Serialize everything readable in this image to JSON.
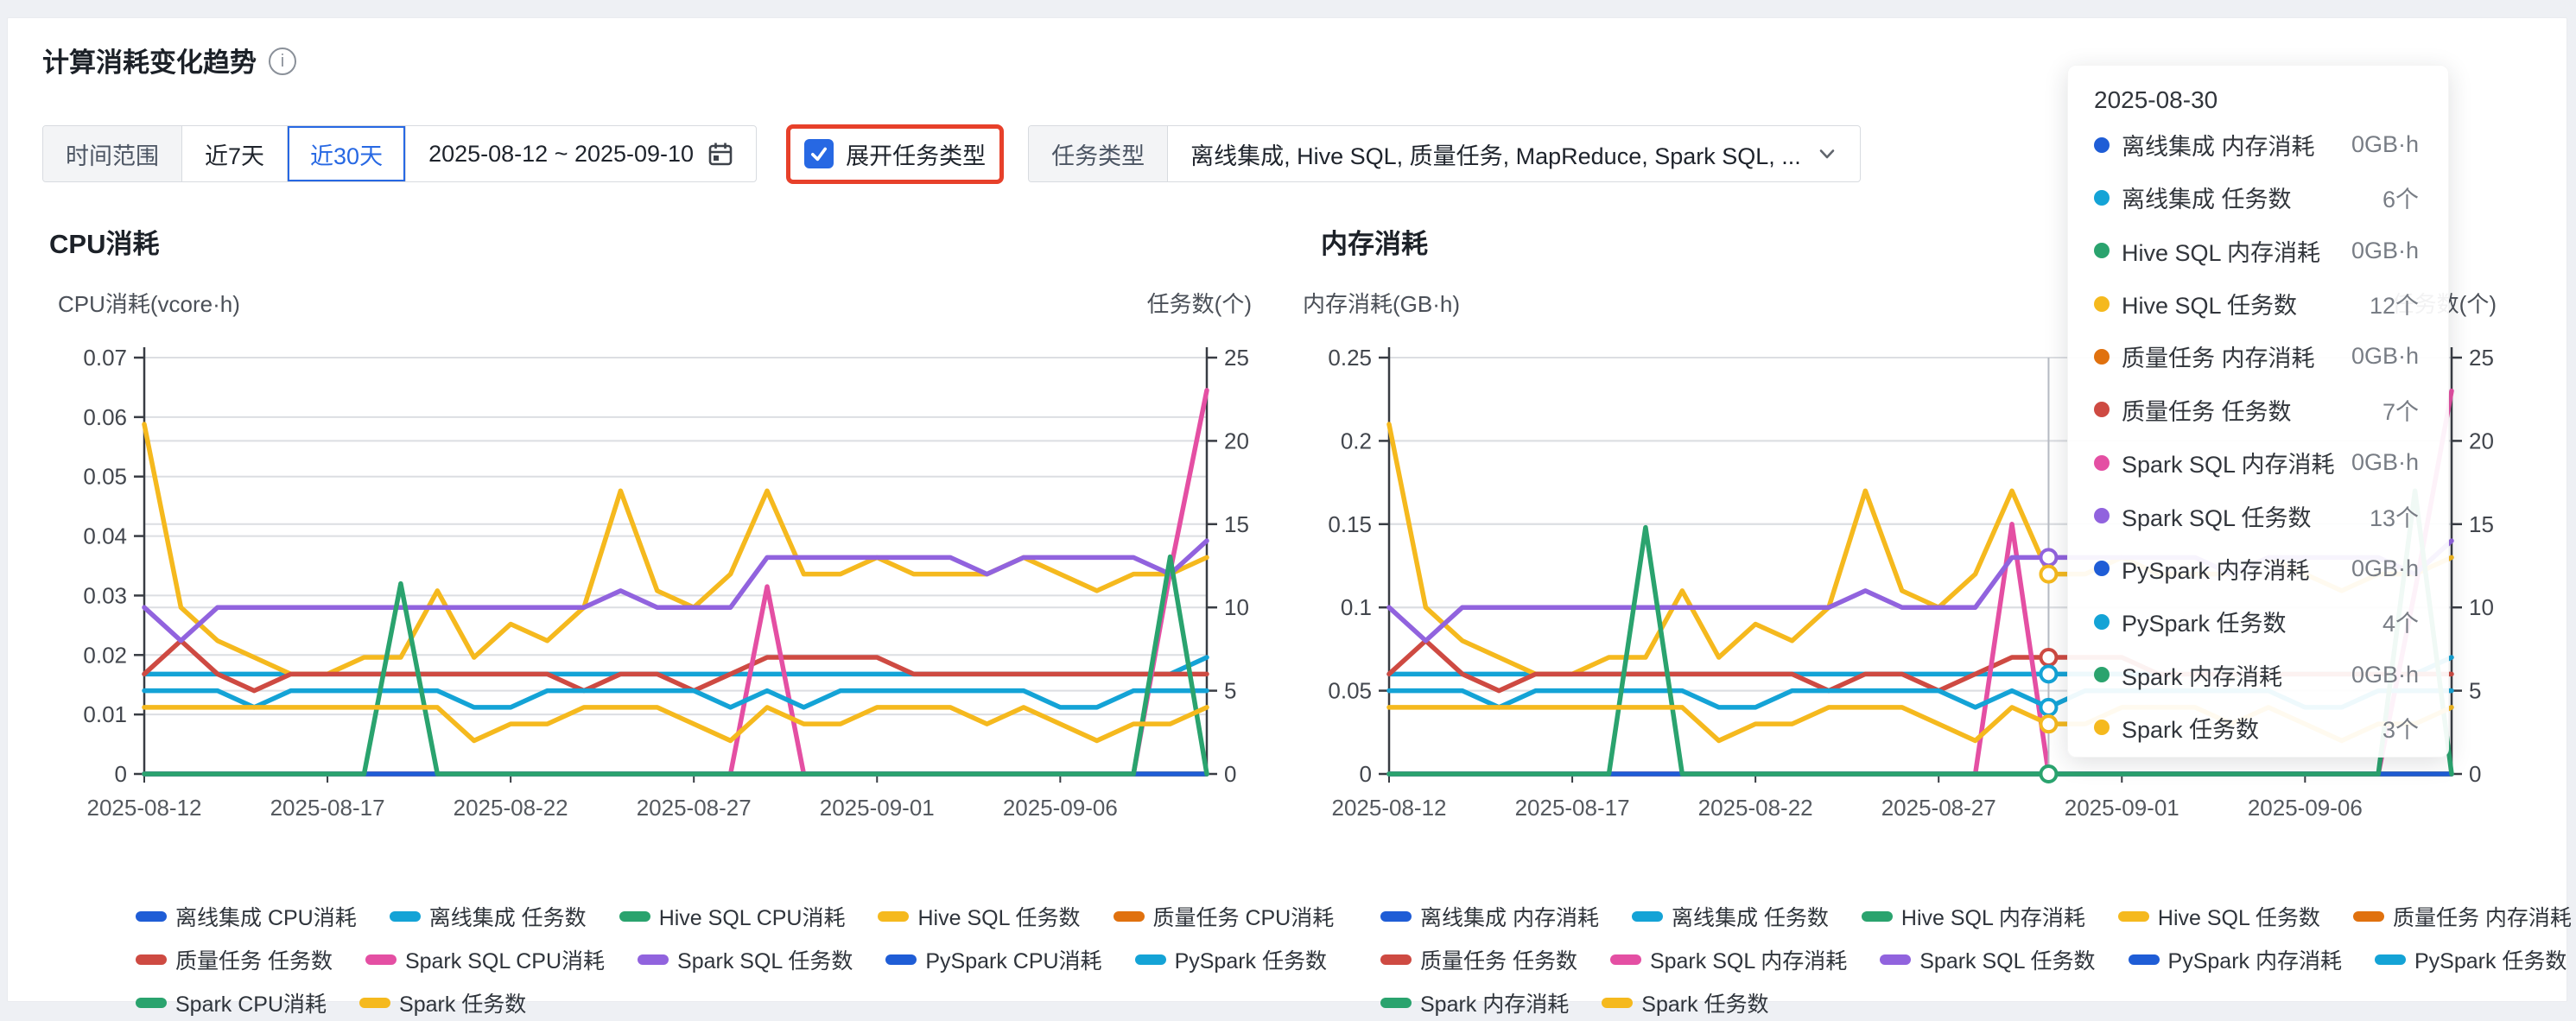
{
  "header": {
    "title": "计算消耗变化趋势"
  },
  "filters": {
    "time_range_label": "时间范围",
    "last_7_days": "近7天",
    "last_30_days": "近30天",
    "date_range": "2025-08-12 ~ 2025-09-10",
    "expand_task_type_label": "展开任务类型",
    "expand_task_type_checked": true,
    "task_type_label": "任务类型",
    "task_type_value": "离线集成, Hive SQL, 质量任务, MapReduce, Spark SQL, ...",
    "accent_blue": "#2768e3",
    "highlight_red": "#e7402a"
  },
  "tooltip": {
    "date": "2025-08-30",
    "rows": [
      {
        "color": "#1f5dd6",
        "name": "离线集成 内存消耗",
        "value": "0GB·h"
      },
      {
        "color": "#14a3d6",
        "name": "离线集成 任务数",
        "value": "6个"
      },
      {
        "color": "#2aa36e",
        "name": "Hive SQL 内存消耗",
        "value": "0GB·h"
      },
      {
        "color": "#f5b91e",
        "name": "Hive SQL 任务数",
        "value": "12个"
      },
      {
        "color": "#e0710e",
        "name": "质量任务 内存消耗",
        "value": "0GB·h"
      },
      {
        "color": "#ce4a42",
        "name": "质量任务 任务数",
        "value": "7个"
      },
      {
        "color": "#e44fa3",
        "name": "Spark SQL 内存消耗",
        "value": "0GB·h"
      },
      {
        "color": "#9163de",
        "name": "Spark SQL 任务数",
        "value": "13个"
      },
      {
        "color": "#1f5dd6",
        "name": "PySpark 内存消耗",
        "value": "0GB·h"
      },
      {
        "color": "#14a3d6",
        "name": "PySpark 任务数",
        "value": "4个"
      },
      {
        "color": "#2aa36e",
        "name": "Spark 内存消耗",
        "value": "0GB·h"
      },
      {
        "color": "#f5b91e",
        "name": "Spark 任务数",
        "value": "3个"
      }
    ]
  },
  "chart_data": [
    {
      "type": "line",
      "id": "cpu",
      "title": "CPU消耗",
      "ylabel": "CPU消耗(vcore·h)",
      "y2label": "任务数(个)",
      "ylim": [
        0,
        0.07
      ],
      "y2lim": [
        0,
        25
      ],
      "y_ticks": [
        "0.07",
        "0.06",
        "0.05",
        "0.04",
        "0.03",
        "0.02",
        "0.01",
        "0"
      ],
      "y2_ticks": [
        "25",
        "20",
        "15",
        "10",
        "5",
        "0"
      ],
      "x": [
        "2025-08-12",
        "2025-08-13",
        "2025-08-14",
        "2025-08-15",
        "2025-08-16",
        "2025-08-17",
        "2025-08-18",
        "2025-08-19",
        "2025-08-20",
        "2025-08-21",
        "2025-08-22",
        "2025-08-23",
        "2025-08-24",
        "2025-08-25",
        "2025-08-26",
        "2025-08-27",
        "2025-08-28",
        "2025-08-29",
        "2025-08-30",
        "2025-08-31",
        "2025-09-01",
        "2025-09-02",
        "2025-09-03",
        "2025-09-04",
        "2025-09-05",
        "2025-09-06",
        "2025-09-07",
        "2025-09-08",
        "2025-09-09",
        "2025-09-10"
      ],
      "x_label_indices": [
        0,
        5,
        10,
        15,
        20,
        25
      ],
      "legend_rows": [
        [
          0,
          1,
          2,
          3,
          4
        ],
        [
          5,
          6,
          7,
          8,
          9
        ],
        [
          10,
          11
        ]
      ],
      "series": [
        {
          "name": "离线集成 CPU消耗",
          "color": "#1f5dd6",
          "axis": "y",
          "values": [
            0,
            0,
            0,
            0,
            0,
            0,
            0,
            0,
            0,
            0,
            0,
            0,
            0,
            0,
            0,
            0,
            0,
            0,
            0,
            0,
            0,
            0,
            0,
            0,
            0,
            0,
            0,
            0,
            0,
            0
          ]
        },
        {
          "name": "离线集成 任务数",
          "color": "#14a3d6",
          "axis": "y2",
          "values": [
            6,
            6,
            6,
            6,
            6,
            6,
            6,
            6,
            6,
            6,
            6,
            6,
            6,
            6,
            6,
            6,
            6,
            6,
            6,
            6,
            6,
            6,
            6,
            6,
            6,
            6,
            6,
            6,
            6,
            7
          ]
        },
        {
          "name": "Hive SQL CPU消耗",
          "color": "#2aa36e",
          "axis": "y",
          "values": [
            0,
            0,
            0,
            0,
            0,
            0,
            0,
            0,
            0,
            0,
            0,
            0,
            0,
            0,
            0,
            0,
            0,
            0,
            0,
            0,
            0,
            0,
            0,
            0,
            0,
            0,
            0,
            0,
            0,
            0
          ]
        },
        {
          "name": "Hive SQL 任务数",
          "color": "#f5b91e",
          "axis": "y2",
          "values": [
            21,
            10,
            8,
            7,
            6,
            6,
            7,
            7,
            11,
            7,
            9,
            8,
            10,
            17,
            11,
            10,
            12,
            17,
            12,
            12,
            13,
            12,
            12,
            12,
            13,
            12,
            11,
            12,
            12,
            13
          ]
        },
        {
          "name": "质量任务 CPU消耗",
          "color": "#e0710e",
          "axis": "y",
          "values": [
            0,
            0,
            0,
            0,
            0,
            0,
            0,
            0,
            0,
            0,
            0,
            0,
            0,
            0,
            0,
            0,
            0,
            0,
            0,
            0,
            0,
            0,
            0,
            0,
            0,
            0,
            0,
            0,
            0,
            0
          ]
        },
        {
          "name": "质量任务 任务数",
          "color": "#ce4a42",
          "axis": "y2",
          "values": [
            6,
            8,
            6,
            5,
            6,
            6,
            6,
            6,
            6,
            6,
            6,
            6,
            5,
            6,
            6,
            5,
            6,
            7,
            7,
            7,
            7,
            6,
            6,
            6,
            6,
            6,
            6,
            6,
            6,
            6
          ]
        },
        {
          "name": "Spark SQL CPU消耗",
          "color": "#e44fa3",
          "axis": "y",
          "values": [
            0,
            0,
            0,
            0,
            0,
            0,
            0,
            0,
            0,
            0,
            0,
            0,
            0,
            0,
            0,
            0,
            0,
            0.0315,
            0,
            0,
            0,
            0,
            0,
            0,
            0,
            0,
            0,
            0,
            0.034,
            0.0645
          ]
        },
        {
          "name": "Spark SQL 任务数",
          "color": "#9163de",
          "axis": "y2",
          "values": [
            10,
            8,
            10,
            10,
            10,
            10,
            10,
            10,
            10,
            10,
            10,
            10,
            10,
            11,
            10,
            10,
            10,
            13,
            13,
            13,
            13,
            13,
            13,
            12,
            13,
            13,
            13,
            13,
            12,
            14
          ]
        },
        {
          "name": "PySpark CPU消耗",
          "color": "#1f5dd6",
          "axis": "y",
          "values": [
            0,
            0,
            0,
            0,
            0,
            0,
            0,
            0,
            0,
            0,
            0,
            0,
            0,
            0,
            0,
            0,
            0,
            0,
            0,
            0,
            0,
            0,
            0,
            0,
            0,
            0,
            0,
            0,
            0,
            0
          ]
        },
        {
          "name": "PySpark 任务数",
          "color": "#14a3d6",
          "axis": "y2",
          "values": [
            5,
            5,
            5,
            4,
            5,
            5,
            5,
            5,
            5,
            4,
            4,
            5,
            5,
            5,
            5,
            5,
            4,
            5,
            4,
            5,
            5,
            5,
            5,
            5,
            5,
            4,
            4,
            5,
            5,
            5
          ]
        },
        {
          "name": "Spark CPU消耗",
          "color": "#2aa36e",
          "axis": "y",
          "values": [
            0,
            0,
            0,
            0,
            0,
            0,
            0,
            0.032,
            0,
            0,
            0,
            0,
            0,
            0,
            0,
            0,
            0,
            0,
            0,
            0,
            0,
            0,
            0,
            0,
            0,
            0,
            0,
            0,
            0.0365,
            0
          ]
        },
        {
          "name": "Spark 任务数",
          "color": "#f5b91e",
          "axis": "y2",
          "values": [
            4,
            4,
            4,
            4,
            4,
            4,
            4,
            4,
            4,
            2,
            3,
            3,
            4,
            4,
            4,
            3,
            2,
            4,
            3,
            3,
            4,
            4,
            4,
            3,
            4,
            3,
            2,
            3,
            3,
            4
          ]
        }
      ]
    },
    {
      "type": "line",
      "id": "mem",
      "title": "内存消耗",
      "ylabel": "内存消耗(GB·h)",
      "y2label": "任务数(个)",
      "ylim": [
        0,
        0.25
      ],
      "y2lim": [
        0,
        25
      ],
      "y_ticks": [
        "0.25",
        "0.2",
        "0.15",
        "0.1",
        "0.05",
        "0"
      ],
      "y2_ticks": [
        "25",
        "20",
        "15",
        "10",
        "5",
        "0"
      ],
      "x": [
        "2025-08-12",
        "2025-08-13",
        "2025-08-14",
        "2025-08-15",
        "2025-08-16",
        "2025-08-17",
        "2025-08-18",
        "2025-08-19",
        "2025-08-20",
        "2025-08-21",
        "2025-08-22",
        "2025-08-23",
        "2025-08-24",
        "2025-08-25",
        "2025-08-26",
        "2025-08-27",
        "2025-08-28",
        "2025-08-29",
        "2025-08-30",
        "2025-08-31",
        "2025-09-01",
        "2025-09-02",
        "2025-09-03",
        "2025-09-04",
        "2025-09-05",
        "2025-09-06",
        "2025-09-07",
        "2025-09-08",
        "2025-09-09",
        "2025-09-10"
      ],
      "x_label_indices": [
        0,
        5,
        10,
        15,
        20,
        25
      ],
      "legend_rows": [
        [
          0,
          1,
          2,
          3,
          4
        ],
        [
          5,
          6,
          7,
          8,
          9
        ],
        [
          10,
          11
        ]
      ],
      "hover": {
        "date_index": 18,
        "line_color": "#b7bcc4",
        "marker_series": [
          7,
          3,
          5,
          1,
          9,
          11,
          10
        ]
      },
      "series": [
        {
          "name": "离线集成 内存消耗",
          "color": "#1f5dd6",
          "axis": "y",
          "values": [
            0,
            0,
            0,
            0,
            0,
            0,
            0,
            0,
            0,
            0,
            0,
            0,
            0,
            0,
            0,
            0,
            0,
            0,
            0,
            0,
            0,
            0,
            0,
            0,
            0,
            0,
            0,
            0,
            0,
            0
          ]
        },
        {
          "name": "离线集成 任务数",
          "color": "#14a3d6",
          "axis": "y2",
          "values": [
            6,
            6,
            6,
            6,
            6,
            6,
            6,
            6,
            6,
            6,
            6,
            6,
            6,
            6,
            6,
            6,
            6,
            6,
            6,
            6,
            6,
            6,
            6,
            6,
            6,
            6,
            6,
            6,
            6,
            7
          ]
        },
        {
          "name": "Hive SQL 内存消耗",
          "color": "#2aa36e",
          "axis": "y",
          "values": [
            0,
            0,
            0,
            0,
            0,
            0,
            0,
            0,
            0,
            0,
            0,
            0,
            0,
            0,
            0,
            0,
            0,
            0,
            0,
            0,
            0,
            0,
            0,
            0,
            0,
            0,
            0,
            0,
            0,
            0
          ]
        },
        {
          "name": "Hive SQL 任务数",
          "color": "#f5b91e",
          "axis": "y2",
          "values": [
            21,
            10,
            8,
            7,
            6,
            6,
            7,
            7,
            11,
            7,
            9,
            8,
            10,
            17,
            11,
            10,
            12,
            17,
            12,
            12,
            13,
            12,
            12,
            12,
            13,
            12,
            11,
            12,
            12,
            13
          ]
        },
        {
          "name": "质量任务 内存消耗",
          "color": "#e0710e",
          "axis": "y",
          "values": [
            0,
            0,
            0,
            0,
            0,
            0,
            0,
            0,
            0,
            0,
            0,
            0,
            0,
            0,
            0,
            0,
            0,
            0,
            0,
            0,
            0,
            0,
            0,
            0,
            0,
            0,
            0,
            0,
            0,
            0
          ]
        },
        {
          "name": "质量任务 任务数",
          "color": "#ce4a42",
          "axis": "y2",
          "values": [
            6,
            8,
            6,
            5,
            6,
            6,
            6,
            6,
            6,
            6,
            6,
            6,
            5,
            6,
            6,
            5,
            6,
            7,
            7,
            7,
            7,
            6,
            6,
            6,
            6,
            6,
            6,
            6,
            6,
            6
          ]
        },
        {
          "name": "Spark SQL 内存消耗",
          "color": "#e44fa3",
          "axis": "y",
          "values": [
            0,
            0,
            0,
            0,
            0,
            0,
            0,
            0,
            0,
            0,
            0,
            0,
            0,
            0,
            0,
            0,
            0,
            0.15,
            0,
            0,
            0,
            0,
            0,
            0,
            0,
            0,
            0,
            0,
            0.11,
            0.23
          ]
        },
        {
          "name": "Spark SQL 任务数",
          "color": "#9163de",
          "axis": "y2",
          "values": [
            10,
            8,
            10,
            10,
            10,
            10,
            10,
            10,
            10,
            10,
            10,
            10,
            10,
            11,
            10,
            10,
            10,
            13,
            13,
            13,
            13,
            13,
            13,
            12,
            13,
            13,
            13,
            13,
            12,
            14
          ]
        },
        {
          "name": "PySpark 内存消耗",
          "color": "#1f5dd6",
          "axis": "y",
          "values": [
            0,
            0,
            0,
            0,
            0,
            0,
            0,
            0,
            0,
            0,
            0,
            0,
            0,
            0,
            0,
            0,
            0,
            0,
            0,
            0,
            0,
            0,
            0,
            0,
            0,
            0,
            0,
            0,
            0,
            0
          ]
        },
        {
          "name": "PySpark 任务数",
          "color": "#14a3d6",
          "axis": "y2",
          "values": [
            5,
            5,
            5,
            4,
            5,
            5,
            5,
            5,
            5,
            4,
            4,
            5,
            5,
            5,
            5,
            5,
            4,
            5,
            4,
            5,
            5,
            5,
            5,
            5,
            5,
            4,
            4,
            5,
            5,
            5
          ]
        },
        {
          "name": "Spark 内存消耗",
          "color": "#2aa36e",
          "axis": "y",
          "values": [
            0,
            0,
            0,
            0,
            0,
            0,
            0,
            0.148,
            0,
            0,
            0,
            0,
            0,
            0,
            0,
            0,
            0,
            0,
            0,
            0,
            0,
            0,
            0,
            0,
            0,
            0,
            0,
            0,
            0.17,
            0
          ]
        },
        {
          "name": "Spark 任务数",
          "color": "#f5b91e",
          "axis": "y2",
          "values": [
            4,
            4,
            4,
            4,
            4,
            4,
            4,
            4,
            4,
            2,
            3,
            3,
            4,
            4,
            4,
            3,
            2,
            4,
            3,
            3,
            4,
            4,
            4,
            3,
            4,
            3,
            2,
            3,
            3,
            4
          ]
        }
      ]
    }
  ]
}
